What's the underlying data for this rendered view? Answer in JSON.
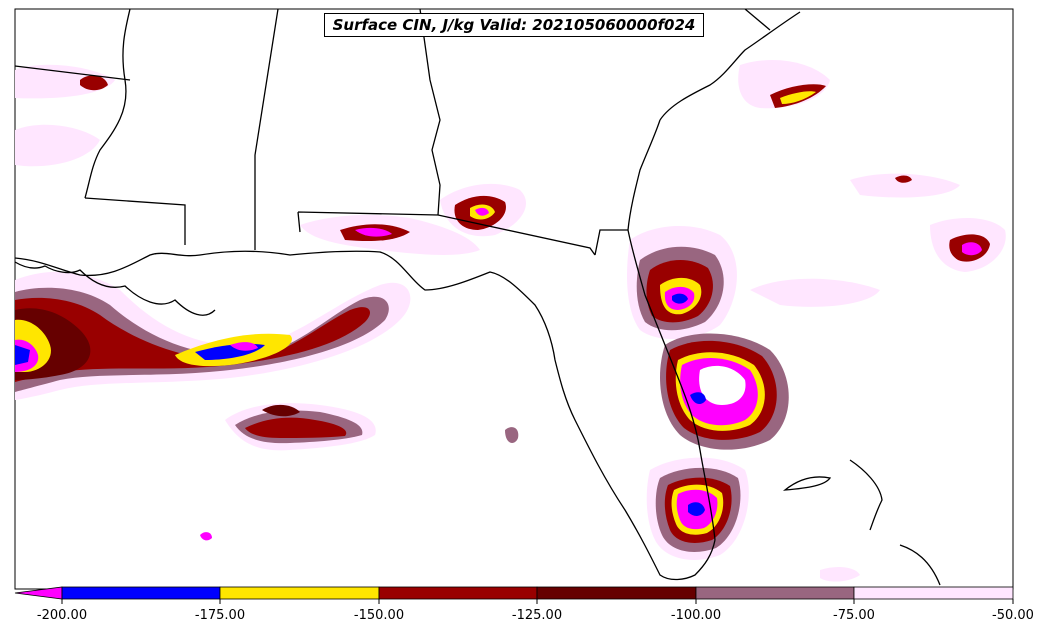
{
  "title": "Surface CIN, J/kg Valid: 202105060000f024",
  "colorbar": {
    "min": -200,
    "max": -50,
    "extend": "min",
    "bins": [
      {
        "from": -200,
        "to": -175,
        "color": "#0000ff"
      },
      {
        "from": -175,
        "to": -150,
        "color": "#ffe600"
      },
      {
        "from": -150,
        "to": -125,
        "color": "#990000"
      },
      {
        "from": -125,
        "to": -100,
        "color": "#660000"
      },
      {
        "from": -100,
        "to": -75,
        "color": "#996680"
      },
      {
        "from": -75,
        "to": -50,
        "color": "#ffe6ff"
      }
    ],
    "under_color": "#ff00ff",
    "tick_labels": [
      "-200.00",
      "-175.00",
      "-150.00",
      "-125.00",
      "-100.00",
      "-75.00",
      "-50.00"
    ]
  },
  "map": {
    "region": "Southeastern United States and Gulf of Mexico",
    "field": "Surface CIN",
    "units": "J/kg"
  },
  "colors": {
    "outline": "#000000",
    "background": "#ffffff"
  }
}
